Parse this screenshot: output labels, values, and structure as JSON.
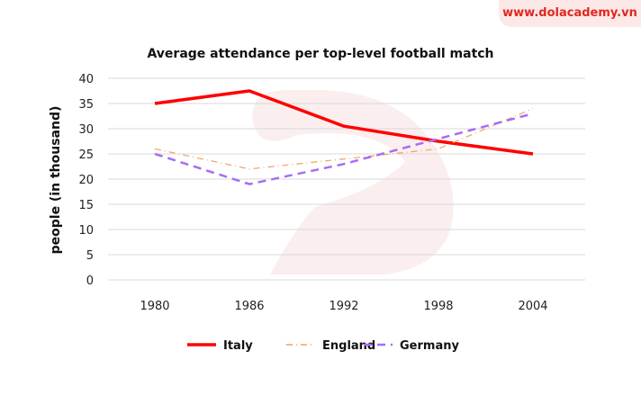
{
  "brand": "www.dolacademy.vn",
  "chart_data": {
    "type": "line",
    "title": "Average attendance per top-level football match",
    "xlabel": "",
    "ylabel": "people (in thousand)",
    "categories": [
      "1980",
      "1986",
      "1992",
      "1998",
      "2004"
    ],
    "ylim": [
      0,
      40
    ],
    "yticks": [
      "0",
      "5",
      "10",
      "15",
      "20",
      "25",
      "30",
      "35",
      "40"
    ],
    "grid": true,
    "legend_position": "bottom",
    "series": [
      {
        "name": "Italy",
        "values": [
          35,
          37.5,
          30.5,
          27.5,
          25
        ],
        "color": "#ff0000",
        "style": "solid"
      },
      {
        "name": "England",
        "values": [
          26,
          22,
          24,
          26,
          34
        ],
        "color": "#f5a05a",
        "style": "dashdot"
      },
      {
        "name": "Germany",
        "values": [
          25,
          19,
          23,
          28,
          33
        ],
        "color": "#a66cf5",
        "style": "dashed"
      }
    ]
  }
}
